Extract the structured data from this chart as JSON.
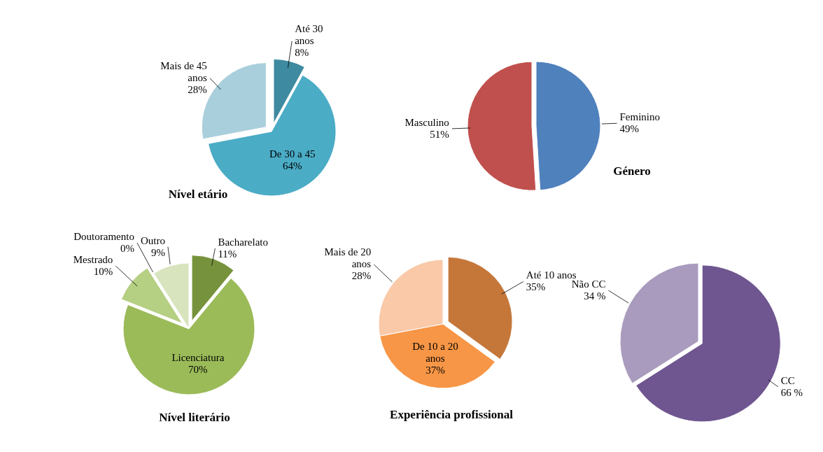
{
  "chart_data": [
    {
      "type": "pie",
      "title": "Nível etário",
      "categories": [
        "Até 30 anos",
        "De 30 a 45",
        "Mais de 45 anos"
      ],
      "values": [
        8,
        64,
        28
      ],
      "colors": [
        "#3e8aa0",
        "#4bacc6",
        "#a9cfdc"
      ],
      "value_labels": [
        "8%",
        "64%",
        "28%"
      ]
    },
    {
      "type": "pie",
      "title": "Género",
      "categories": [
        "Feminino",
        "Masculino"
      ],
      "values": [
        49,
        51
      ],
      "colors": [
        "#4f81bd",
        "#c0504d"
      ],
      "value_labels": [
        "49%",
        "51%"
      ]
    },
    {
      "type": "pie",
      "title": "Nível literário",
      "categories": [
        "Bacharelato",
        "Licenciatura",
        "Mestrado",
        "Doutoramento",
        "Outro"
      ],
      "values": [
        11,
        70,
        10,
        0,
        9
      ],
      "colors": [
        "#76923c",
        "#9bbb59",
        "#b5cf83",
        "#c4c4c4",
        "#d7e4bd"
      ],
      "value_labels": [
        "11%",
        "70%",
        "10%",
        "0%",
        "9%"
      ]
    },
    {
      "type": "pie",
      "title": "Experiência profissional",
      "categories": [
        "Até 10 anos",
        "De 10 a 20 anos",
        "Mais de 20 anos"
      ],
      "values": [
        35,
        37,
        28
      ],
      "colors": [
        "#c5773a",
        "#f79646",
        "#f9c9a8"
      ],
      "value_labels": [
        "35%",
        "37%",
        "28%"
      ]
    },
    {
      "type": "pie",
      "categories": [
        "CC",
        "Não CC"
      ],
      "values": [
        66,
        34
      ],
      "colors": [
        "#6f5690",
        "#a99bbd"
      ],
      "value_labels": [
        "66 %",
        "34 %"
      ]
    }
  ]
}
